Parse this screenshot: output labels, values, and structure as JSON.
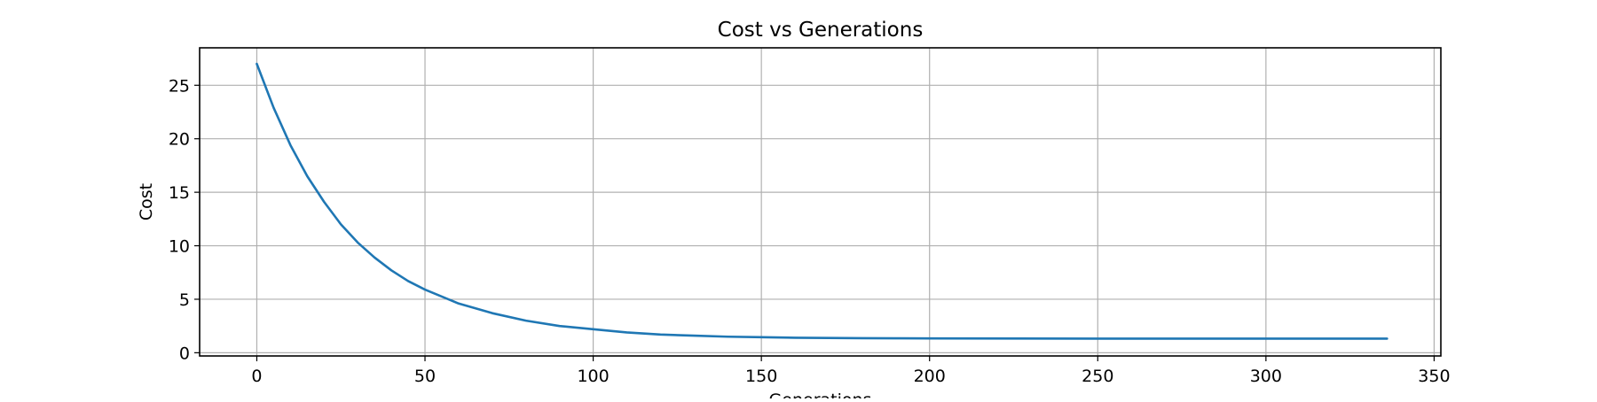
{
  "chart_data": {
    "type": "line",
    "title": "Cost vs Generations",
    "xlabel": "Generations",
    "ylabel": "Cost",
    "xlim": [
      -17,
      352
    ],
    "ylim": [
      -0.3,
      28.5
    ],
    "x_ticks": [
      0,
      50,
      100,
      150,
      200,
      250,
      300,
      350
    ],
    "y_ticks": [
      0,
      5,
      10,
      15,
      20,
      25
    ],
    "grid": true,
    "series": [
      {
        "color": "#1f77b4",
        "x": [
          0,
          5,
          10,
          15,
          20,
          25,
          30,
          35,
          40,
          45,
          50,
          60,
          70,
          80,
          90,
          100,
          110,
          120,
          130,
          140,
          150,
          160,
          170,
          180,
          190,
          200,
          225,
          250,
          275,
          300,
          325,
          336
        ],
        "y": [
          27.0,
          22.9,
          19.4,
          16.5,
          14.1,
          12.0,
          10.3,
          8.9,
          7.7,
          6.7,
          5.9,
          4.6,
          3.7,
          3.0,
          2.5,
          2.2,
          1.9,
          1.7,
          1.6,
          1.5,
          1.45,
          1.4,
          1.38,
          1.36,
          1.35,
          1.34,
          1.33,
          1.32,
          1.32,
          1.32,
          1.32,
          1.32
        ]
      }
    ]
  }
}
